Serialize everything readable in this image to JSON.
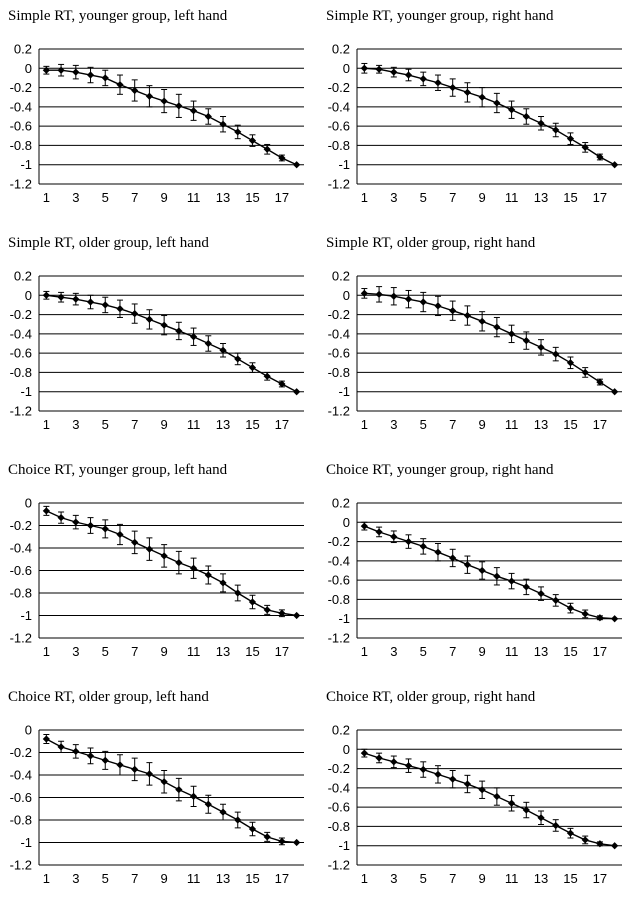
{
  "chart_data": [
    {
      "type": "line",
      "title": "Simple RT, younger group, left hand",
      "x": [
        1,
        2,
        3,
        4,
        5,
        6,
        7,
        8,
        9,
        10,
        11,
        12,
        13,
        14,
        15,
        16,
        17,
        18
      ],
      "x_tick_labels": [
        "1",
        "3",
        "5",
        "7",
        "9",
        "11",
        "13",
        "15",
        "17"
      ],
      "y_tick_labels": [
        "0.2",
        "0",
        "-0.2",
        "-0.4",
        "-0.6",
        "-0.8",
        "-1",
        "-1.2"
      ],
      "ylim": [
        -1.2,
        0.2
      ],
      "grid": "horizontal",
      "series": [
        {
          "values": [
            -0.02,
            -0.02,
            -0.04,
            -0.07,
            -0.1,
            -0.17,
            -0.23,
            -0.29,
            -0.34,
            -0.39,
            -0.44,
            -0.5,
            -0.58,
            -0.66,
            -0.75,
            -0.84,
            -0.93,
            -1.0
          ],
          "error": [
            0.04,
            0.06,
            0.07,
            0.08,
            0.08,
            0.1,
            0.11,
            0.11,
            0.12,
            0.12,
            0.1,
            0.08,
            0.08,
            0.07,
            0.06,
            0.05,
            0.03,
            0.0
          ],
          "color": "#000000"
        }
      ]
    },
    {
      "type": "line",
      "title": "Simple RT, younger group, right hand",
      "x": [
        1,
        2,
        3,
        4,
        5,
        6,
        7,
        8,
        9,
        10,
        11,
        12,
        13,
        14,
        15,
        16,
        17,
        18
      ],
      "x_tick_labels": [
        "1",
        "3",
        "5",
        "7",
        "9",
        "11",
        "13",
        "15",
        "17"
      ],
      "y_tick_labels": [
        "0.2",
        "0",
        "-0.2",
        "-0.4",
        "-0.6",
        "-0.8",
        "-1",
        "-1.2"
      ],
      "ylim": [
        -1.2,
        0.2
      ],
      "grid": "horizontal",
      "series": [
        {
          "values": [
            0.0,
            -0.01,
            -0.04,
            -0.07,
            -0.11,
            -0.15,
            -0.2,
            -0.25,
            -0.3,
            -0.36,
            -0.43,
            -0.5,
            -0.57,
            -0.64,
            -0.73,
            -0.82,
            -0.92,
            -1.0
          ],
          "error": [
            0.05,
            0.04,
            0.05,
            0.06,
            0.07,
            0.08,
            0.09,
            0.1,
            0.1,
            0.1,
            0.09,
            0.08,
            0.07,
            0.07,
            0.06,
            0.05,
            0.03,
            0.0
          ],
          "color": "#000000"
        }
      ]
    },
    {
      "type": "line",
      "title": "Simple RT, older group, left hand",
      "x": [
        1,
        2,
        3,
        4,
        5,
        6,
        7,
        8,
        9,
        10,
        11,
        12,
        13,
        14,
        15,
        16,
        17,
        18
      ],
      "x_tick_labels": [
        "1",
        "3",
        "5",
        "7",
        "9",
        "11",
        "13",
        "15",
        "17"
      ],
      "y_tick_labels": [
        "0.2",
        "0",
        "-0.2",
        "-0.4",
        "-0.6",
        "-0.8",
        "-1",
        "-1.2"
      ],
      "ylim": [
        -1.2,
        0.2
      ],
      "grid": "horizontal",
      "series": [
        {
          "values": [
            0.0,
            -0.02,
            -0.04,
            -0.07,
            -0.1,
            -0.14,
            -0.19,
            -0.25,
            -0.31,
            -0.37,
            -0.43,
            -0.5,
            -0.57,
            -0.66,
            -0.75,
            -0.84,
            -0.92,
            -1.0
          ],
          "error": [
            0.04,
            0.05,
            0.06,
            0.07,
            0.08,
            0.09,
            0.1,
            0.1,
            0.1,
            0.09,
            0.09,
            0.08,
            0.07,
            0.06,
            0.05,
            0.04,
            0.03,
            0.0
          ],
          "color": "#000000"
        }
      ]
    },
    {
      "type": "line",
      "title": "Simple RT, older group, right hand",
      "x": [
        1,
        2,
        3,
        4,
        5,
        6,
        7,
        8,
        9,
        10,
        11,
        12,
        13,
        14,
        15,
        16,
        17,
        18
      ],
      "x_tick_labels": [
        "1",
        "3",
        "5",
        "7",
        "9",
        "11",
        "13",
        "15",
        "17"
      ],
      "y_tick_labels": [
        "0.2",
        "0",
        "-0.2",
        "-0.4",
        "-0.6",
        "-0.8",
        "-1",
        "-1.2"
      ],
      "ylim": [
        -1.2,
        0.2
      ],
      "grid": "horizontal",
      "series": [
        {
          "values": [
            0.02,
            0.01,
            -0.01,
            -0.04,
            -0.07,
            -0.11,
            -0.16,
            -0.21,
            -0.27,
            -0.33,
            -0.4,
            -0.47,
            -0.54,
            -0.61,
            -0.7,
            -0.8,
            -0.9,
            -1.0
          ],
          "error": [
            0.05,
            0.08,
            0.09,
            0.09,
            0.1,
            0.1,
            0.1,
            0.1,
            0.1,
            0.1,
            0.09,
            0.09,
            0.08,
            0.07,
            0.06,
            0.05,
            0.03,
            0.0
          ],
          "color": "#000000"
        }
      ]
    },
    {
      "type": "line",
      "title": "Choice RT, younger group, left hand",
      "x": [
        1,
        2,
        3,
        4,
        5,
        6,
        7,
        8,
        9,
        10,
        11,
        12,
        13,
        14,
        15,
        16,
        17,
        18
      ],
      "x_tick_labels": [
        "1",
        "3",
        "5",
        "7",
        "9",
        "11",
        "13",
        "15",
        "17"
      ],
      "y_tick_labels": [
        "0",
        "-0.2",
        "-0.4",
        "-0.6",
        "-0.8",
        "-1",
        "-1.2"
      ],
      "ylim": [
        -1.2,
        0.0
      ],
      "grid": "horizontal",
      "series": [
        {
          "values": [
            -0.07,
            -0.13,
            -0.17,
            -0.2,
            -0.23,
            -0.28,
            -0.35,
            -0.41,
            -0.47,
            -0.53,
            -0.58,
            -0.64,
            -0.71,
            -0.8,
            -0.88,
            -0.95,
            -0.98,
            -1.0
          ],
          "error": [
            0.04,
            0.05,
            0.06,
            0.07,
            0.08,
            0.09,
            0.1,
            0.1,
            0.1,
            0.1,
            0.09,
            0.08,
            0.08,
            0.07,
            0.06,
            0.04,
            0.03,
            0.0
          ],
          "color": "#000000"
        }
      ]
    },
    {
      "type": "line",
      "title": "Choice RT, younger group, right hand",
      "x": [
        1,
        2,
        3,
        4,
        5,
        6,
        7,
        8,
        9,
        10,
        11,
        12,
        13,
        14,
        15,
        16,
        17,
        18
      ],
      "x_tick_labels": [
        "1",
        "3",
        "5",
        "7",
        "9",
        "11",
        "13",
        "15",
        "17"
      ],
      "y_tick_labels": [
        "0.2",
        "0",
        "-0.2",
        "-0.4",
        "-0.6",
        "-0.8",
        "-1",
        "-1.2"
      ],
      "ylim": [
        -1.2,
        0.2
      ],
      "grid": "horizontal",
      "series": [
        {
          "values": [
            -0.04,
            -0.1,
            -0.15,
            -0.2,
            -0.25,
            -0.31,
            -0.37,
            -0.44,
            -0.5,
            -0.56,
            -0.61,
            -0.67,
            -0.74,
            -0.81,
            -0.89,
            -0.95,
            -0.99,
            -1.0
          ],
          "error": [
            0.04,
            0.05,
            0.06,
            0.07,
            0.08,
            0.09,
            0.09,
            0.09,
            0.09,
            0.09,
            0.08,
            0.08,
            0.07,
            0.06,
            0.05,
            0.04,
            0.02,
            0.0
          ],
          "color": "#000000"
        }
      ]
    },
    {
      "type": "line",
      "title": "Choice RT, older group, left hand",
      "x": [
        1,
        2,
        3,
        4,
        5,
        6,
        7,
        8,
        9,
        10,
        11,
        12,
        13,
        14,
        15,
        16,
        17,
        18
      ],
      "x_tick_labels": [
        "1",
        "3",
        "5",
        "7",
        "9",
        "11",
        "13",
        "15",
        "17"
      ],
      "y_tick_labels": [
        "0",
        "-0.2",
        "-0.4",
        "-0.6",
        "-0.8",
        "-1",
        "-1.2"
      ],
      "ylim": [
        -1.2,
        0.0
      ],
      "grid": "horizontal",
      "series": [
        {
          "values": [
            -0.08,
            -0.15,
            -0.19,
            -0.23,
            -0.27,
            -0.31,
            -0.35,
            -0.39,
            -0.46,
            -0.53,
            -0.59,
            -0.66,
            -0.73,
            -0.8,
            -0.88,
            -0.95,
            -0.99,
            -1.0
          ],
          "error": [
            0.04,
            0.05,
            0.06,
            0.07,
            0.08,
            0.09,
            0.1,
            0.1,
            0.1,
            0.1,
            0.09,
            0.08,
            0.07,
            0.07,
            0.06,
            0.04,
            0.03,
            0.0
          ],
          "color": "#000000"
        }
      ]
    },
    {
      "type": "line",
      "title": "Choice RT, older group, right hand",
      "x": [
        1,
        2,
        3,
        4,
        5,
        6,
        7,
        8,
        9,
        10,
        11,
        12,
        13,
        14,
        15,
        16,
        17,
        18
      ],
      "x_tick_labels": [
        "1",
        "3",
        "5",
        "7",
        "9",
        "11",
        "13",
        "15",
        "17"
      ],
      "y_tick_labels": [
        "0.2",
        "0",
        "-0.2",
        "-0.4",
        "-0.6",
        "-0.8",
        "-1",
        "-1.2"
      ],
      "ylim": [
        -1.2,
        0.2
      ],
      "grid": "horizontal",
      "series": [
        {
          "values": [
            -0.04,
            -0.09,
            -0.13,
            -0.17,
            -0.21,
            -0.26,
            -0.31,
            -0.36,
            -0.42,
            -0.49,
            -0.56,
            -0.63,
            -0.71,
            -0.79,
            -0.87,
            -0.94,
            -0.98,
            -1.0
          ],
          "error": [
            0.04,
            0.05,
            0.06,
            0.07,
            0.08,
            0.09,
            0.09,
            0.09,
            0.09,
            0.09,
            0.08,
            0.08,
            0.07,
            0.06,
            0.05,
            0.04,
            0.02,
            0.0
          ],
          "color": "#000000"
        }
      ]
    }
  ]
}
